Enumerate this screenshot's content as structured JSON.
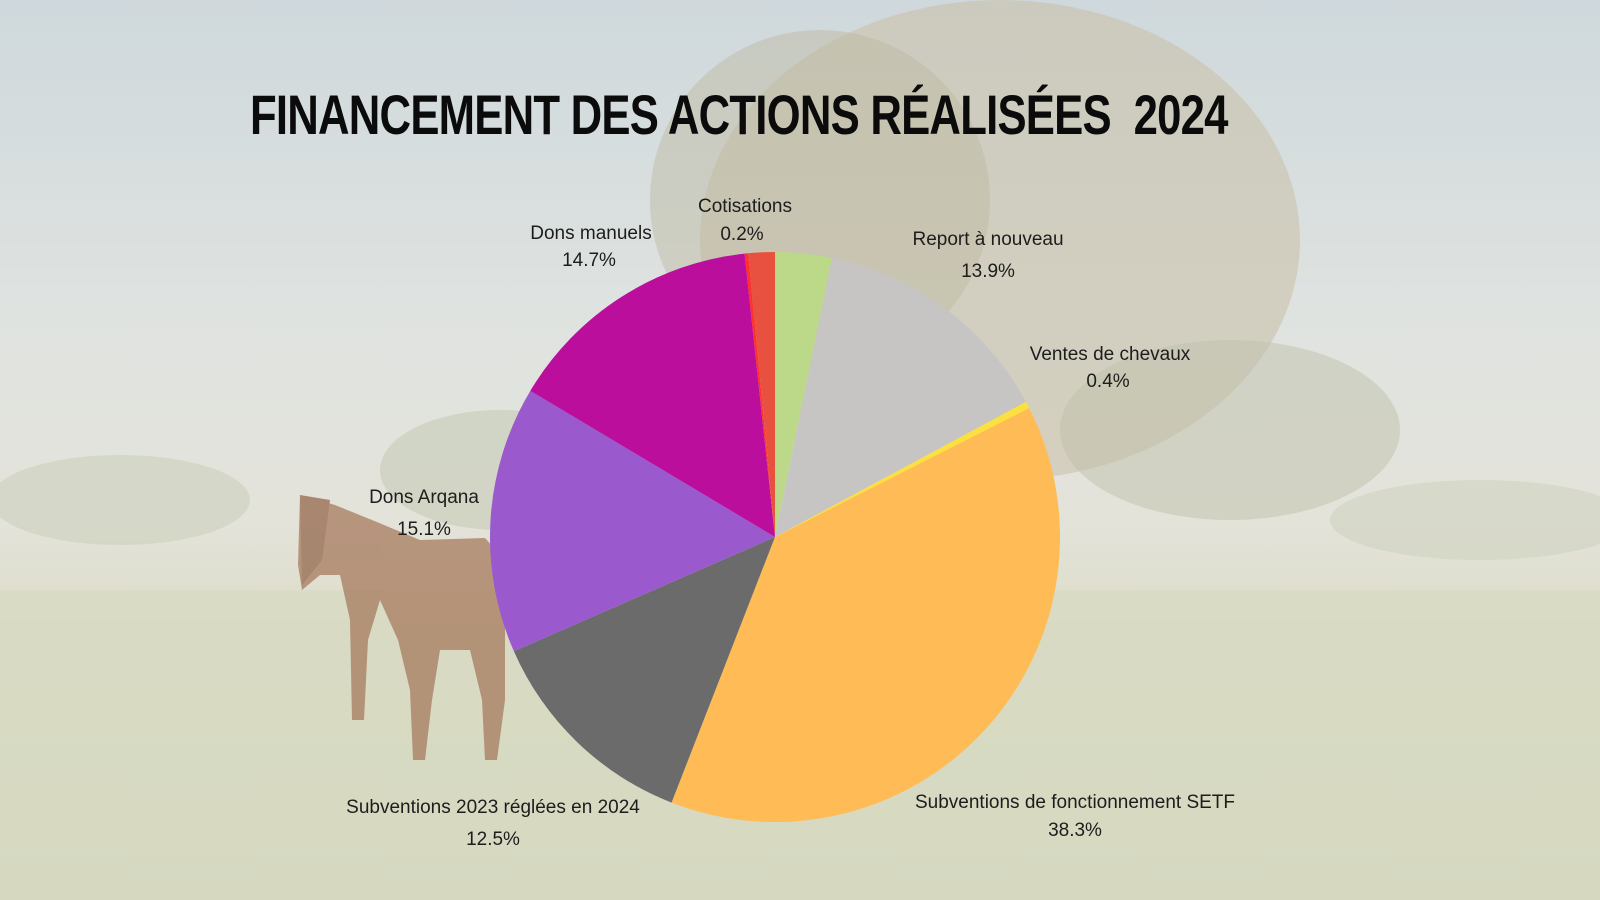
{
  "title": "FINANCEMENT DES ACTIONS RÉALISÉES  2024",
  "chart_data": {
    "type": "pie",
    "title": "FINANCEMENT DES ACTIONS RÉALISÉES  2024",
    "slices": [
      {
        "name": "",
        "value": 3.2,
        "label": "",
        "color": "#bcd98a"
      },
      {
        "name": "Report à nouveau",
        "value": 13.9,
        "label": "13.9%",
        "color": "#c6c5c3"
      },
      {
        "name": "Ventes de chevaux",
        "value": 0.4,
        "label": "0.4%",
        "color": "#fce03f"
      },
      {
        "name": "Subventions de fonctionnement SETF",
        "value": 38.3,
        "label": "38.3%",
        "color": "#ffbb55"
      },
      {
        "name": "Subventions 2023 réglées en 2024",
        "value": 12.5,
        "label": "12.5%",
        "color": "#6b6b6b"
      },
      {
        "name": "Dons Arqana",
        "value": 15.1,
        "label": "15.1%",
        "color": "#9b59ce"
      },
      {
        "name": "Dons manuels",
        "value": 14.7,
        "label": "14.7%",
        "color": "#bb0e9c"
      },
      {
        "name": "Cotisations",
        "value": 0.2,
        "label": "0.2%",
        "color": "#ff3030"
      },
      {
        "name": "",
        "value": 1.5,
        "label": "",
        "color": "#e8503f"
      }
    ]
  }
}
